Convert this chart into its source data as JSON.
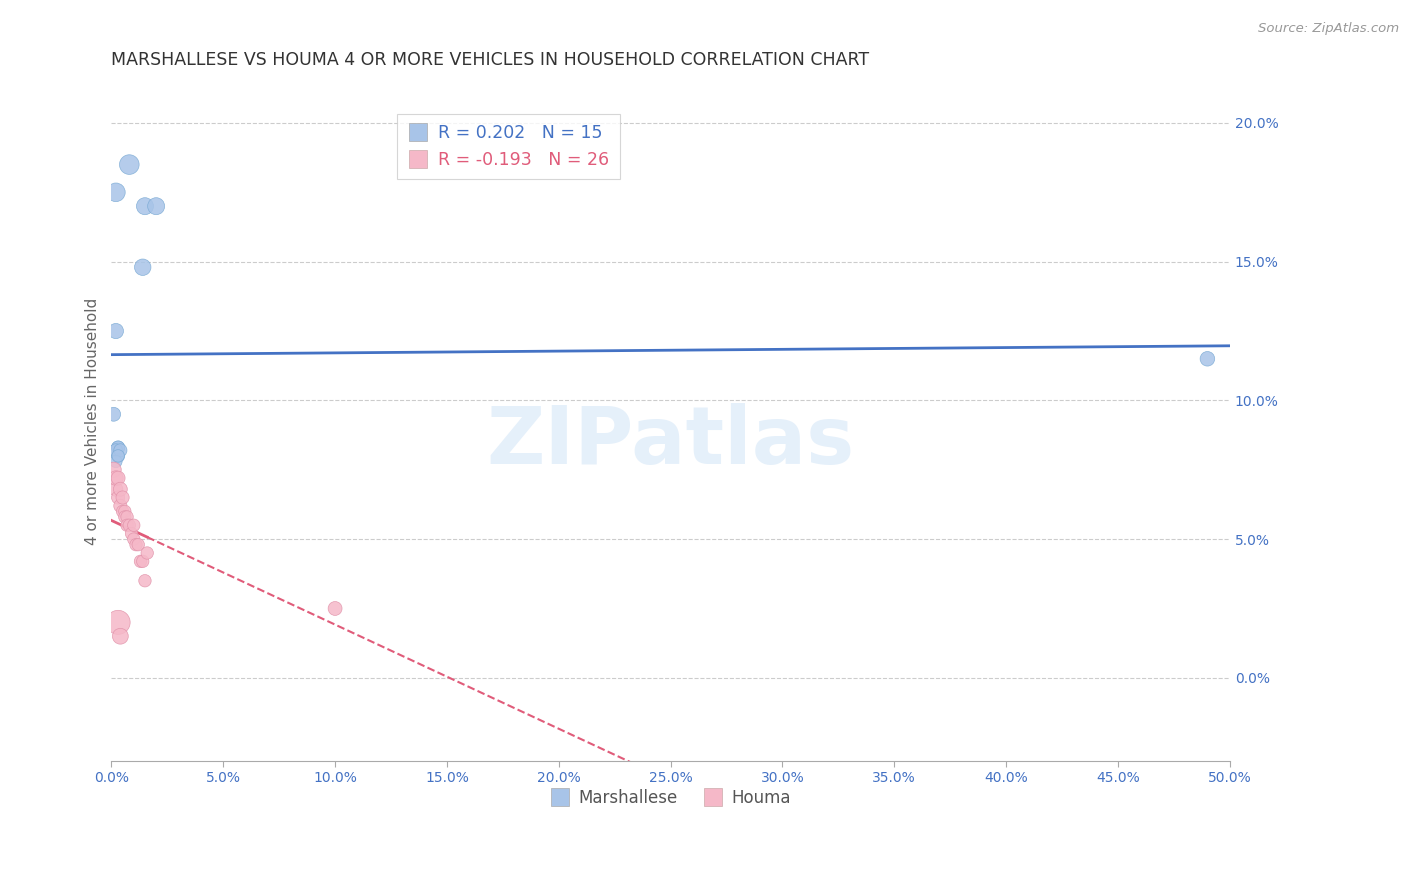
{
  "title": "MARSHALLESE VS HOUMA 4 OR MORE VEHICLES IN HOUSEHOLD CORRELATION CHART",
  "source": "Source: ZipAtlas.com",
  "ylabel": "4 or more Vehicles in Household",
  "legend_marshallese": "Marshallese",
  "legend_houma": "Houma",
  "R_marshallese": 0.202,
  "N_marshallese": 15,
  "R_houma": -0.193,
  "N_houma": 26,
  "xlim": [
    0.0,
    0.5
  ],
  "ylim": [
    -0.03,
    0.215
  ],
  "xticks": [
    0.0,
    0.05,
    0.1,
    0.15,
    0.2,
    0.25,
    0.3,
    0.35,
    0.4,
    0.45,
    0.5
  ],
  "yticks": [
    0.0,
    0.05,
    0.1,
    0.15,
    0.2
  ],
  "color_marshallese": "#a8c4e8",
  "color_houma": "#f5b8c8",
  "trendline_marshallese": "#4472c4",
  "trendline_houma": "#e05c7a",
  "watermark_text": "ZIPatlas",
  "marshallese_x": [
    0.002,
    0.008,
    0.015,
    0.02,
    0.002,
    0.001,
    0.003,
    0.003,
    0.003,
    0.002,
    0.014,
    0.004,
    0.002,
    0.49,
    0.003
  ],
  "marshallese_y": [
    0.175,
    0.185,
    0.17,
    0.17,
    0.125,
    0.095,
    0.083,
    0.08,
    0.083,
    0.082,
    0.148,
    0.082,
    0.078,
    0.115,
    0.08
  ],
  "houma_x": [
    0.001,
    0.002,
    0.002,
    0.003,
    0.003,
    0.004,
    0.004,
    0.005,
    0.005,
    0.006,
    0.006,
    0.007,
    0.007,
    0.008,
    0.009,
    0.01,
    0.01,
    0.011,
    0.012,
    0.013,
    0.014,
    0.015,
    0.016,
    0.1,
    0.003,
    0.004
  ],
  "houma_y": [
    0.075,
    0.068,
    0.072,
    0.072,
    0.065,
    0.068,
    0.062,
    0.065,
    0.06,
    0.06,
    0.058,
    0.058,
    0.055,
    0.055,
    0.052,
    0.055,
    0.05,
    0.048,
    0.048,
    0.042,
    0.042,
    0.035,
    0.045,
    0.025,
    0.02,
    0.015
  ]
}
